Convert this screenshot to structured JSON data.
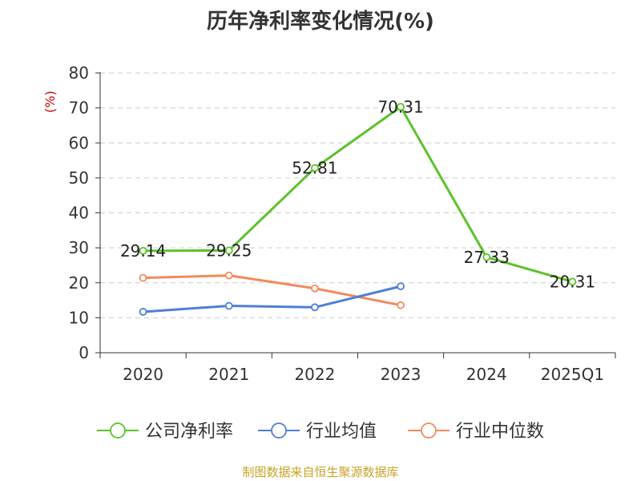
{
  "chart_data": {
    "type": "line",
    "title": "历年净利率变化情况(%)",
    "ylabel": "(%)",
    "categories": [
      "2020",
      "2021",
      "2022",
      "2023",
      "2024",
      "2025Q1"
    ],
    "ylim": [
      0,
      80
    ],
    "yticks": [
      0,
      10,
      20,
      30,
      40,
      50,
      60,
      70,
      80
    ],
    "grid": true,
    "legend_position": "bottom",
    "series": [
      {
        "name": "公司净利率",
        "color": "#5cc22a",
        "values": [
          29.14,
          29.25,
          52.81,
          70.31,
          27.33,
          20.31
        ],
        "labels": [
          "29.14",
          "29.25",
          "52.81",
          "70.31",
          "27.33",
          "20.31"
        ]
      },
      {
        "name": "行业均值",
        "color": "#4f7fd8",
        "values": [
          11.7,
          13.4,
          13.0,
          19.0,
          null,
          null
        ]
      },
      {
        "name": "行业中位数",
        "color": "#f28a5c",
        "values": [
          21.4,
          22.1,
          18.4,
          13.6,
          null,
          null
        ]
      }
    ]
  },
  "footer": {
    "source": "制图数据来自恒生聚源数据库"
  },
  "colors": {
    "axis_label_red": "#cc0000",
    "grid": "#cccccc",
    "axis": "#333333"
  }
}
